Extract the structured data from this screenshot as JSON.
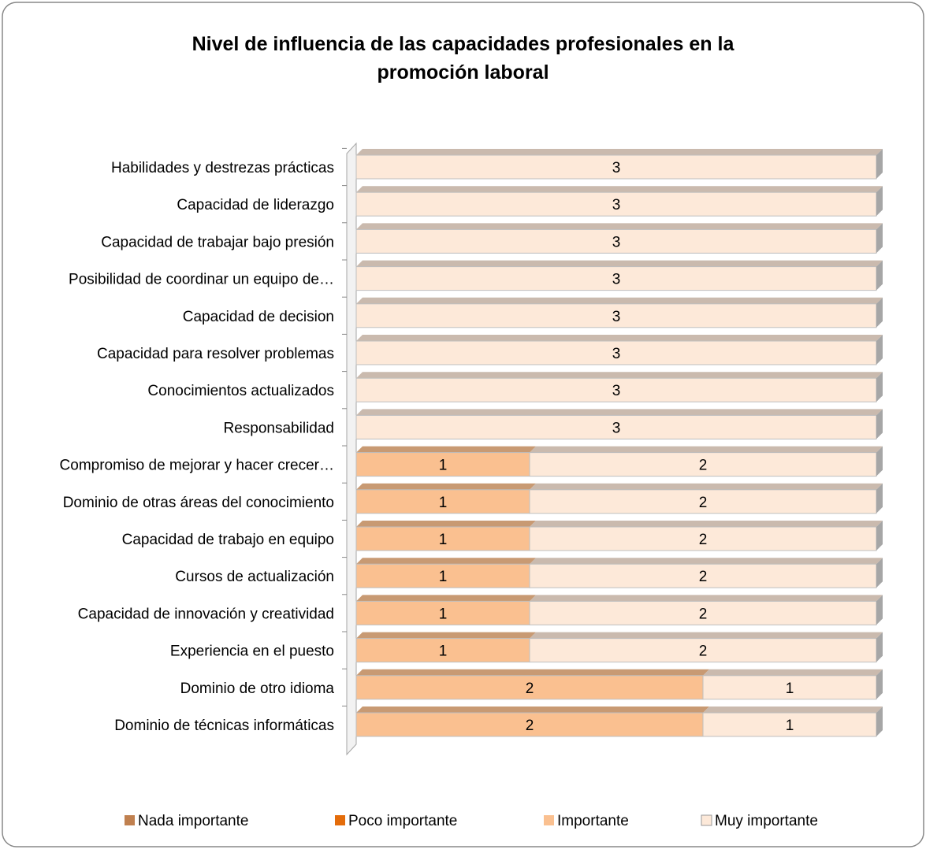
{
  "chart_data": {
    "type": "stacked-bar-horizontal",
    "title": "Nivel de influencia de las capacidades profesionales en la promoción laboral",
    "categories": [
      "Habilidades y destrezas prácticas",
      "Capacidad de liderazgo",
      "Capacidad de trabajar bajo presión",
      "Posibilidad de coordinar un equipo de…",
      "Capacidad de decision",
      "Capacidad para resolver problemas",
      "Conocimientos actualizados",
      "Responsabilidad",
      "Compromiso de mejorar y hacer crecer…",
      "Dominio de otras áreas del conocimiento",
      "Capacidad de trabajo en equipo",
      "Cursos de actualización",
      "Capacidad de innovación y creatividad",
      "Experiencia en el puesto",
      "Dominio de otro idioma",
      "Dominio de técnicas informáticas"
    ],
    "series": [
      {
        "name": "Nada importante",
        "color": "#c0804f",
        "values": [
          0,
          0,
          0,
          0,
          0,
          0,
          0,
          0,
          0,
          0,
          0,
          0,
          0,
          0,
          0,
          0
        ]
      },
      {
        "name": "Poco importante",
        "color": "#e46c0a",
        "values": [
          0,
          0,
          0,
          0,
          0,
          0,
          0,
          0,
          0,
          0,
          0,
          0,
          0,
          0,
          0,
          0
        ]
      },
      {
        "name": "Importante",
        "color": "#fac090",
        "values": [
          0,
          0,
          0,
          0,
          0,
          0,
          0,
          0,
          1,
          1,
          1,
          1,
          1,
          1,
          2,
          2
        ]
      },
      {
        "name": "Muy importante",
        "color": "#fde9d9",
        "values": [
          3,
          3,
          3,
          3,
          3,
          3,
          3,
          3,
          2,
          2,
          2,
          2,
          2,
          2,
          1,
          1
        ]
      }
    ],
    "xlim": [
      0,
      3
    ]
  }
}
